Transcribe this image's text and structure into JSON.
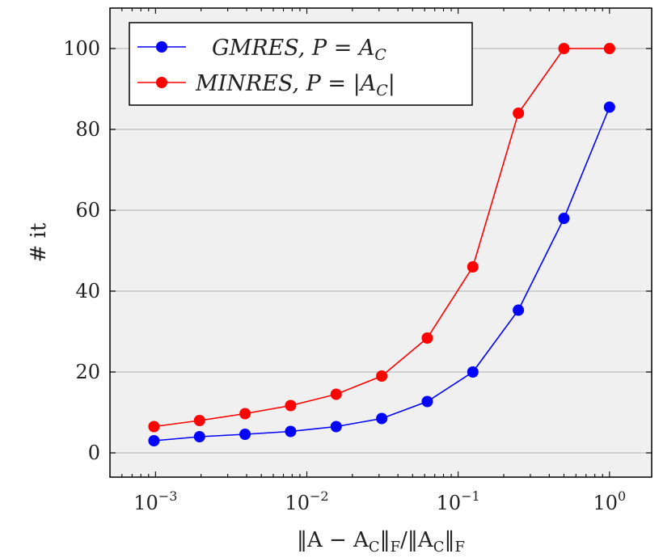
{
  "chart_data": {
    "type": "line",
    "xscale": "log",
    "xlim": [
      0.0005,
      1.9
    ],
    "ylim": [
      -6,
      110
    ],
    "grid": "horizontal",
    "legend_position": "top-left",
    "xlabel": "‖A − A_C‖_F / ‖A_C‖_F",
    "ylabel": "# it",
    "x_ticks": [
      {
        "value": 0.001,
        "mantissa": "10",
        "exponent": "−3"
      },
      {
        "value": 0.01,
        "mantissa": "10",
        "exponent": "−2"
      },
      {
        "value": 0.1,
        "mantissa": "10",
        "exponent": "−1"
      },
      {
        "value": 1,
        "mantissa": "10",
        "exponent": "0"
      }
    ],
    "y_ticks": [
      {
        "value": 0,
        "label": "0"
      },
      {
        "value": 20,
        "label": "20"
      },
      {
        "value": 40,
        "label": "40"
      },
      {
        "value": 60,
        "label": "60"
      },
      {
        "value": 80,
        "label": "80"
      },
      {
        "value": 100,
        "label": "100"
      }
    ],
    "series": [
      {
        "name": "GMRES, P = A_C",
        "color": "#0000ff",
        "x": [
          0.0009765625,
          0.001953125,
          0.00390625,
          0.0078125,
          0.015625,
          0.03125,
          0.0625,
          0.125,
          0.25,
          0.5,
          1
        ],
        "values": [
          3,
          4,
          4.6,
          5.3,
          6.5,
          8.5,
          12.7,
          20,
          35.3,
          58,
          85.5
        ]
      },
      {
        "name": "MINRES, P = |A_C|",
        "color": "#ff0000",
        "x": [
          0.0009765625,
          0.001953125,
          0.00390625,
          0.0078125,
          0.015625,
          0.03125,
          0.0625,
          0.125,
          0.25,
          0.5,
          1
        ],
        "values": [
          6.5,
          8,
          9.7,
          11.7,
          14.5,
          19,
          28.4,
          46,
          84,
          100,
          100
        ]
      }
    ]
  },
  "colors": {
    "plot_background": "#f0f0f0",
    "grid": "#bdbdbd",
    "frame": "#000000"
  }
}
